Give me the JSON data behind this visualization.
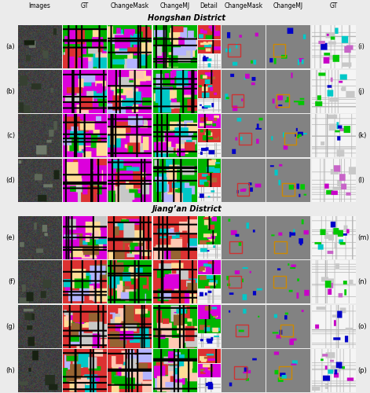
{
  "district1": "Hongshan District",
  "district2": "Jiang’an District",
  "row_labels_left": [
    "(a)",
    "(b)",
    "(c)",
    "(d)",
    "(e)",
    "(f)",
    "(g)",
    "(h)"
  ],
  "row_labels_right": [
    "(i)",
    "(j)",
    "(k)",
    "(l)",
    "(m)",
    "(n)",
    "(o)",
    "(p)"
  ],
  "col_headers": [
    "Images",
    "GT",
    "ChangeMask",
    "ChangeMJ",
    "Detail",
    "ChangeMask",
    "ChangeMJ",
    "GT"
  ],
  "bg_color": "#ebebeb",
  "header_bg": "#e0e0e0",
  "district_bg": "#e0e0e0",
  "bcd_gray": [
    130,
    130,
    130
  ],
  "detail_border_colors": [
    "#cc3333",
    "#cc8800"
  ],
  "annotation_colors": [
    "#cc3333",
    "#cc8800"
  ]
}
